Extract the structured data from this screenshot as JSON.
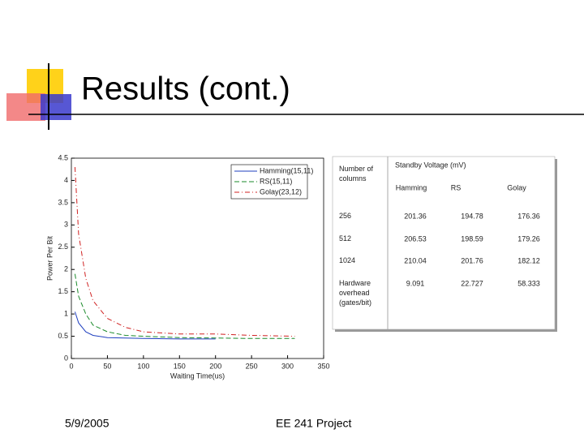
{
  "slide": {
    "title": "Results (cont.)",
    "date": "5/9/2005",
    "footer": "EE 241 Project"
  },
  "chart_data": {
    "type": "line",
    "xlabel": "Waiting Time(us)",
    "ylabel": "Power Per Bit",
    "xlim": [
      0,
      350
    ],
    "ylim": [
      0,
      4.5
    ],
    "xticks": [
      0,
      50,
      100,
      150,
      200,
      250,
      300,
      350
    ],
    "yticks": [
      0,
      0.5,
      1,
      1.5,
      2,
      2.5,
      3,
      3.5,
      4,
      4.5
    ],
    "legend": "upper right",
    "series": [
      {
        "name": "Hamming(15,11)",
        "color": "#1f3fbf",
        "style": "solid",
        "x": [
          5,
          10,
          20,
          30,
          50,
          100,
          150,
          200
        ],
        "values": [
          1.05,
          0.8,
          0.6,
          0.52,
          0.47,
          0.45,
          0.44,
          0.44
        ]
      },
      {
        "name": "RS(15,11)",
        "color": "#1a8a2a",
        "style": "dashed",
        "x": [
          5,
          10,
          20,
          30,
          50,
          75,
          100,
          150,
          200,
          250,
          310
        ],
        "values": [
          1.9,
          1.4,
          1.0,
          0.75,
          0.6,
          0.52,
          0.5,
          0.47,
          0.46,
          0.45,
          0.45
        ]
      },
      {
        "name": "Golay(23,12)",
        "color": "#d02020",
        "style": "dashdot",
        "x": [
          5,
          10,
          20,
          30,
          50,
          75,
          100,
          150,
          200,
          250,
          310
        ],
        "values": [
          4.3,
          2.8,
          1.8,
          1.3,
          0.9,
          0.7,
          0.6,
          0.55,
          0.55,
          0.52,
          0.5
        ]
      }
    ]
  },
  "table": {
    "corner": "Number of columns",
    "group": "Standby Voltage (mV)",
    "columns": [
      "Hamming",
      "RS",
      "Golay"
    ],
    "rows": [
      [
        "256",
        "201.36",
        "194.78",
        "176.36"
      ],
      [
        "512",
        "206.53",
        "198.59",
        "179.26"
      ],
      [
        "1024",
        "210.04",
        "201.76",
        "182.12"
      ],
      [
        "Hardware overhead (gates/bit)",
        "9.091",
        "22.727",
        "58.333"
      ]
    ]
  }
}
